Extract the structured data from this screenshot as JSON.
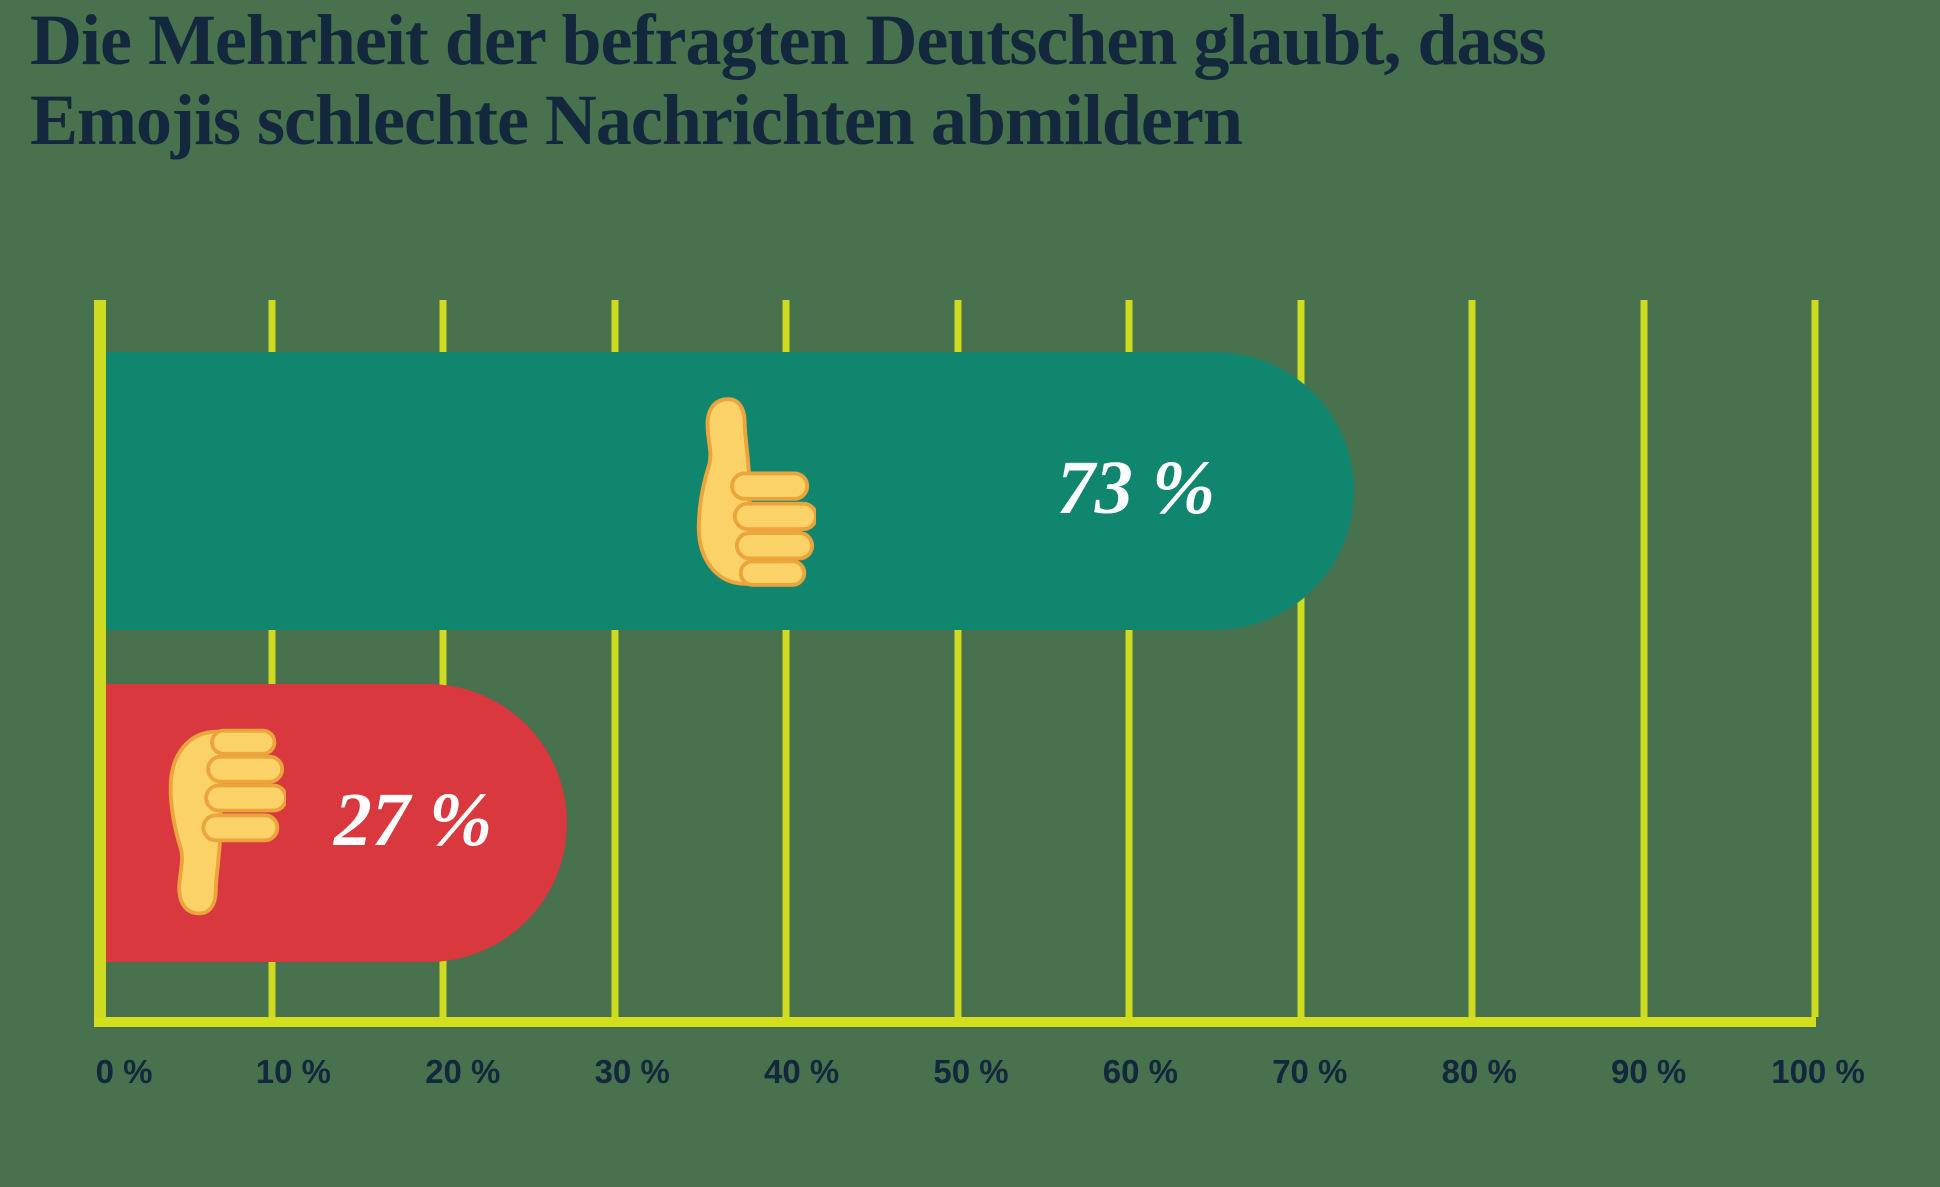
{
  "page": {
    "background_color": "#48714E"
  },
  "title": {
    "text": "Die Mehrheit der befragten Deutschen glaubt, dass Emojis schlechte Nachrichten abmildern",
    "line1": "Die Mehrheit der befragten Deutschen glaubt, dass",
    "line2": "Emojis schlechte Nachrichten abmildern",
    "color": "#13283C"
  },
  "chart_data": {
    "type": "bar",
    "orientation": "horizontal",
    "title": "Die Mehrheit der befragten Deutschen glaubt, dass Emojis schlechte Nachrichten abmildern",
    "categories": [
      "thumbs-up-emoji",
      "thumbs-down-emoji"
    ],
    "values": [
      73,
      27
    ],
    "value_labels": [
      "73 %",
      "27 %"
    ],
    "series": [
      {
        "name": "thumbs-up",
        "value": 73,
        "label": "73 %",
        "color": "#10866E",
        "icon": "thumbs-up-emoji"
      },
      {
        "name": "thumbs-down",
        "value": 27,
        "label": "27 %",
        "color": "#D8383E",
        "icon": "thumbs-down-emoji"
      }
    ],
    "xlabel": "",
    "ylabel": "",
    "xlim": [
      0,
      100
    ],
    "x_tick_step": 10,
    "x_ticks": [
      "0 %",
      "10 %",
      "20 %",
      "30 %",
      "40 %",
      "50 %",
      "60 %",
      "70 %",
      "80 %",
      "90 %",
      "100 %"
    ],
    "grid": true,
    "legend_position": "none",
    "gridline_color": "#CEDB20",
    "axis_line_color": "#D3DF1E",
    "tick_label_color": "#13283C",
    "value_label_color": "#FFFFFF",
    "emoji_fill_color": "#FBD268",
    "emoji_outline_color": "#ECA43D"
  }
}
